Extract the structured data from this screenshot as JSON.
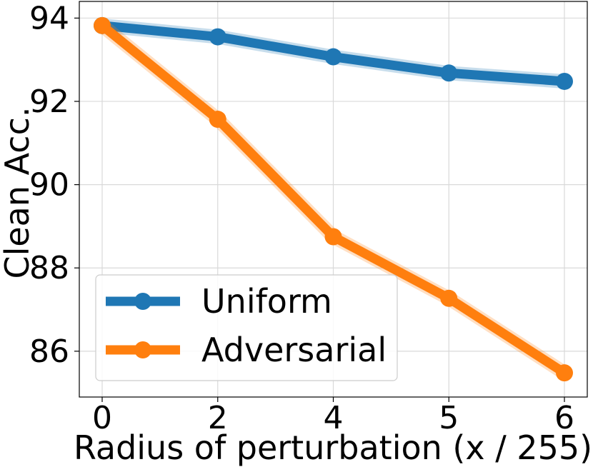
{
  "chart_data": {
    "type": "line",
    "x": [
      "0",
      "2",
      "4",
      "5",
      "6"
    ],
    "xlabel": "Radius of perturbation (x / 255)",
    "ylabel": "Clean Acc.",
    "ylim": [
      84.9,
      94.4
    ],
    "yticks": [
      86,
      88,
      90,
      92,
      94
    ],
    "grid": true,
    "legend_position": "lower-left",
    "series": [
      {
        "name": "Uniform",
        "color": "#1f77b4",
        "values": [
          93.82,
          93.55,
          93.07,
          92.68,
          92.48
        ]
      },
      {
        "name": "Adversarial",
        "color": "#ff7f0e",
        "values": [
          93.82,
          91.57,
          88.75,
          87.27,
          85.48
        ]
      }
    ]
  }
}
